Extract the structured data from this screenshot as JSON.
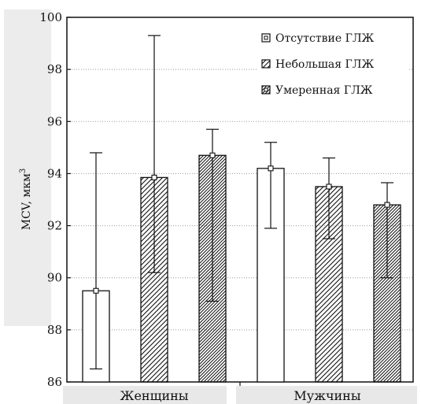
{
  "chart_data": {
    "type": "bar",
    "ylabel": "MCV, мкм",
    "ylabel_superscript": "3",
    "ylim": [
      86,
      100
    ],
    "yticks": [
      "86",
      "88",
      "90",
      "92",
      "94",
      "96",
      "98",
      "100"
    ],
    "grid": true,
    "legend_position": "top-right",
    "categories": [
      "Женщины",
      "Мужчины"
    ],
    "series": [
      {
        "name": "Отсутствие ГЛЖ",
        "pattern": "none",
        "values": [
          89.5,
          94.2
        ],
        "error_low": [
          86.5,
          91.9
        ],
        "error_high": [
          94.8,
          95.2
        ]
      },
      {
        "name": "Небольшая ГЛЖ",
        "pattern": "hatch-sparse",
        "values": [
          93.85,
          93.5
        ],
        "error_low": [
          90.2,
          91.5
        ],
        "error_high": [
          99.3,
          94.6
        ]
      },
      {
        "name": "Умеренная ГЛЖ",
        "pattern": "hatch-dense",
        "values": [
          94.7,
          92.8
        ],
        "error_low": [
          89.1,
          90.0
        ],
        "error_high": [
          95.7,
          93.65
        ]
      }
    ]
  },
  "colors": {
    "bar_fill": "#ffffff",
    "stroke": "#111111",
    "grid": "#9a9a9a",
    "label_band": "#e8e8e8",
    "axis_band": "#ececec"
  }
}
